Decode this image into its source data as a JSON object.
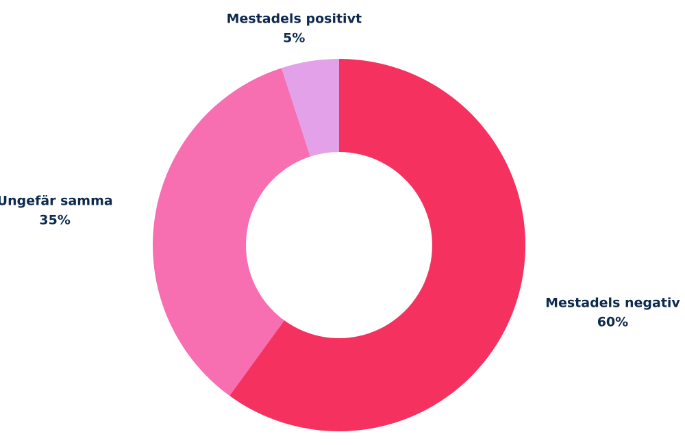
{
  "chart_data": {
    "type": "donut",
    "categories": [
      "Mestadels negativ",
      "Ungefär samma",
      "Mestadels positivt"
    ],
    "values": [
      60,
      35,
      5
    ],
    "value_labels": [
      "60%",
      "35%",
      "5%"
    ],
    "colors": [
      "#f5315f",
      "#f76eb1",
      "#e3a1ea"
    ]
  }
}
